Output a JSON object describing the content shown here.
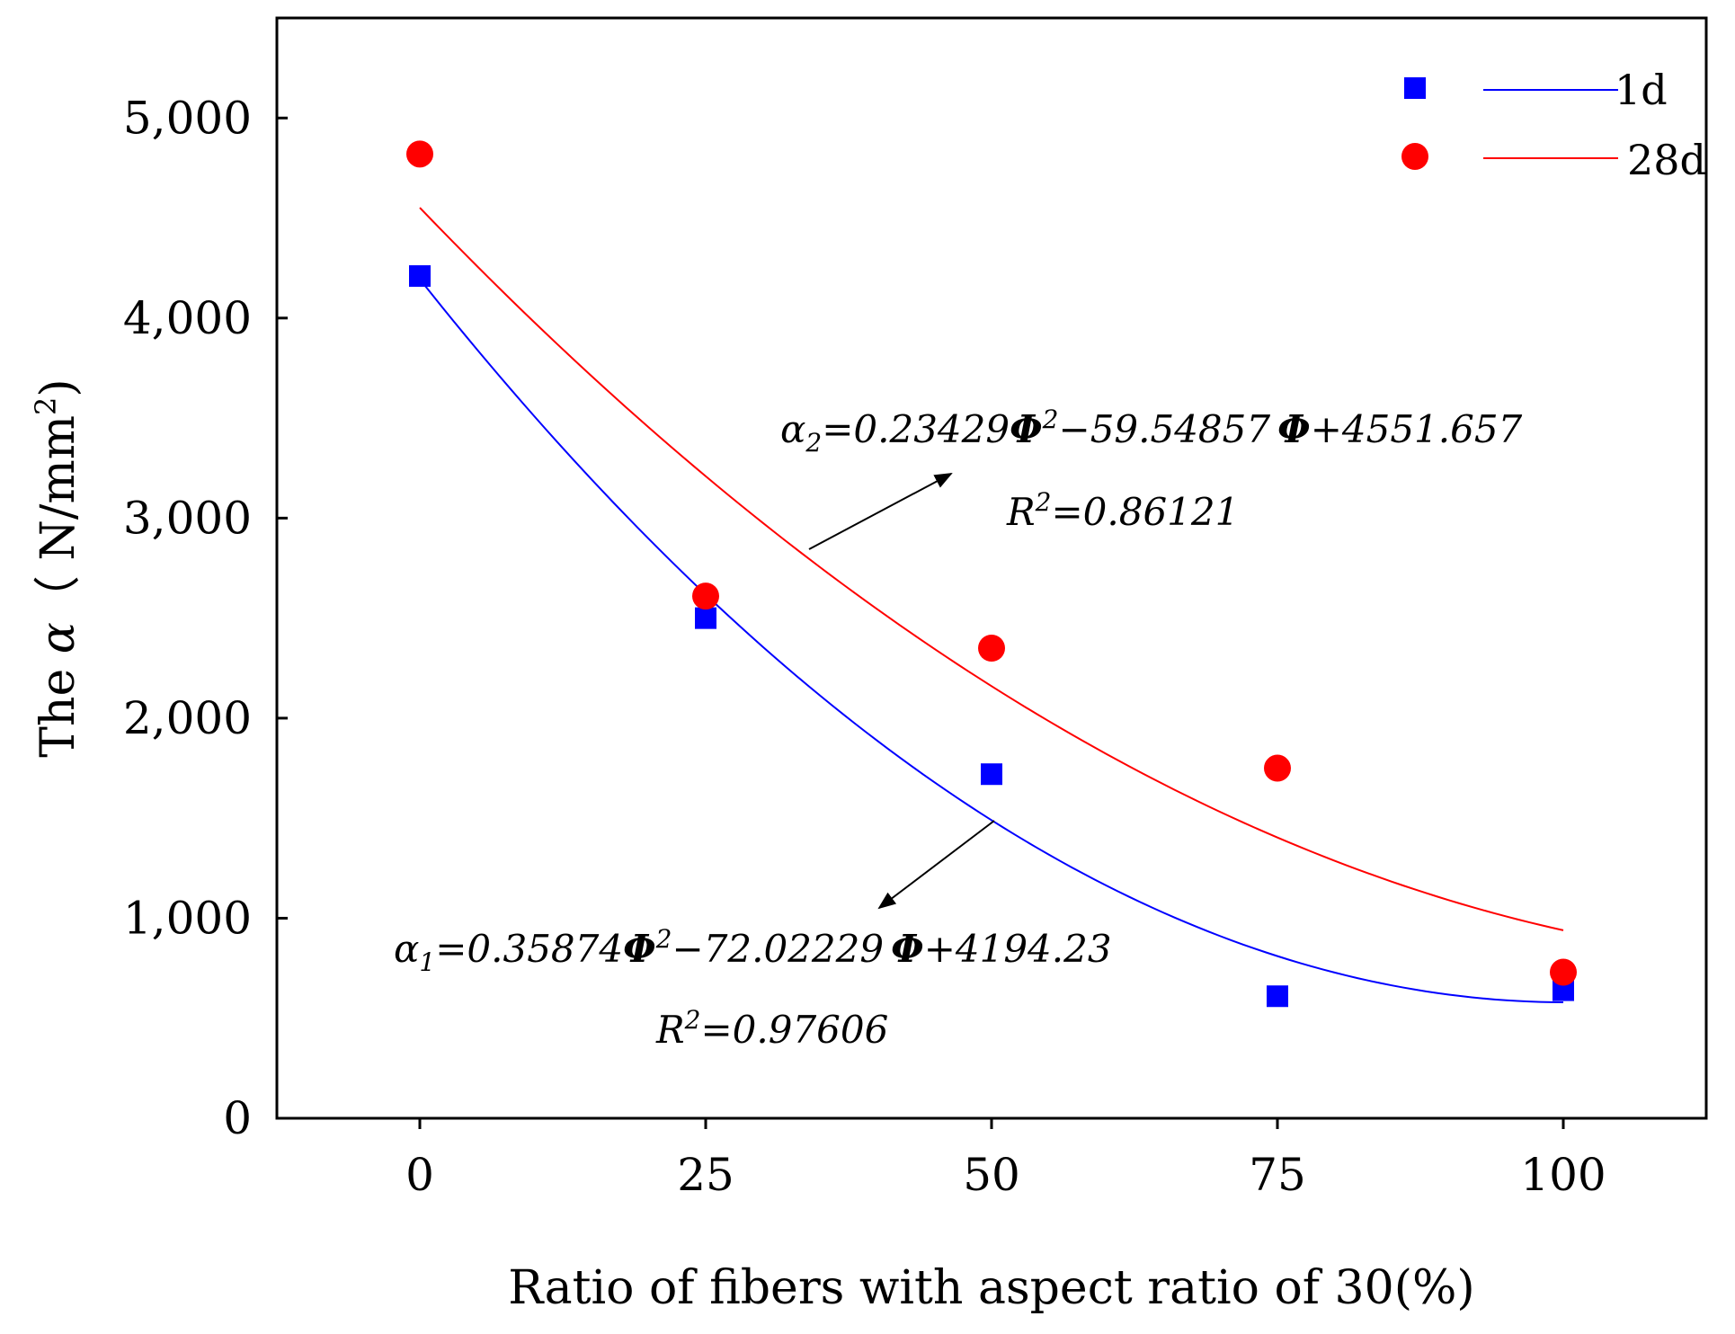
{
  "chart_data": {
    "type": "scatter",
    "title": "",
    "xlabel": "Ratio of fibers with aspect ratio of 30(%)",
    "ylabel": "The α（ N/mm²)",
    "ylabel_parts": {
      "prefix": "The ",
      "symbol": "α",
      "unit": "（ N/mm",
      "sup": "2",
      "close": ")"
    },
    "xlim": [
      -12.5,
      112.5
    ],
    "ylim": [
      0,
      5500
    ],
    "x_ticks": [
      0,
      25,
      50,
      75,
      100
    ],
    "x_tick_labels": [
      "0",
      "25",
      "50",
      "75",
      "100"
    ],
    "y_ticks": [
      0,
      1000,
      2000,
      3000,
      4000,
      5000
    ],
    "y_tick_labels": [
      "0",
      "1,000",
      "2,000",
      "3,000",
      "4,000",
      "5,000"
    ],
    "legend_position": "top-right",
    "series": [
      {
        "name": "1d",
        "marker": "square",
        "color": "#0000ff",
        "x": [
          0,
          25,
          50,
          75,
          100
        ],
        "values": [
          4210,
          2500,
          1720,
          610,
          640
        ],
        "fit": {
          "a": 0.35874,
          "b": -72.02229,
          "c": 4194.23,
          "r2": "0.97606"
        },
        "equation_parts": {
          "sym": "α",
          "sub": "1",
          "eq1": "=0.35874",
          "phi": "Φ",
          "sup": "2",
          "eq2": "−72.02229",
          "eq3": "+4194.23"
        },
        "r2_label": {
          "r": "R",
          "sup": "2",
          "val": "=0.97606"
        }
      },
      {
        "name": "28d",
        "marker": "circle",
        "color": "#ff0000",
        "x": [
          0,
          25,
          50,
          75,
          100
        ],
        "values": [
          4820,
          2610,
          2350,
          1750,
          730
        ],
        "fit": {
          "a": 0.23429,
          "b": -59.54857,
          "c": 4551.657,
          "r2": "0.86121"
        },
        "equation_parts": {
          "sym": "α",
          "sub": "2",
          "eq1": "=0.23429",
          "phi": "Φ",
          "sup": "2",
          "eq2": "−59.54857",
          "eq3": "+4551.657"
        },
        "r2_label": {
          "r": "R",
          "sup": "2",
          "val": "=0.86121"
        }
      }
    ]
  },
  "colors": {
    "series_1d": "#0000ff",
    "series_28d": "#ff0000",
    "axis": "#000000"
  }
}
